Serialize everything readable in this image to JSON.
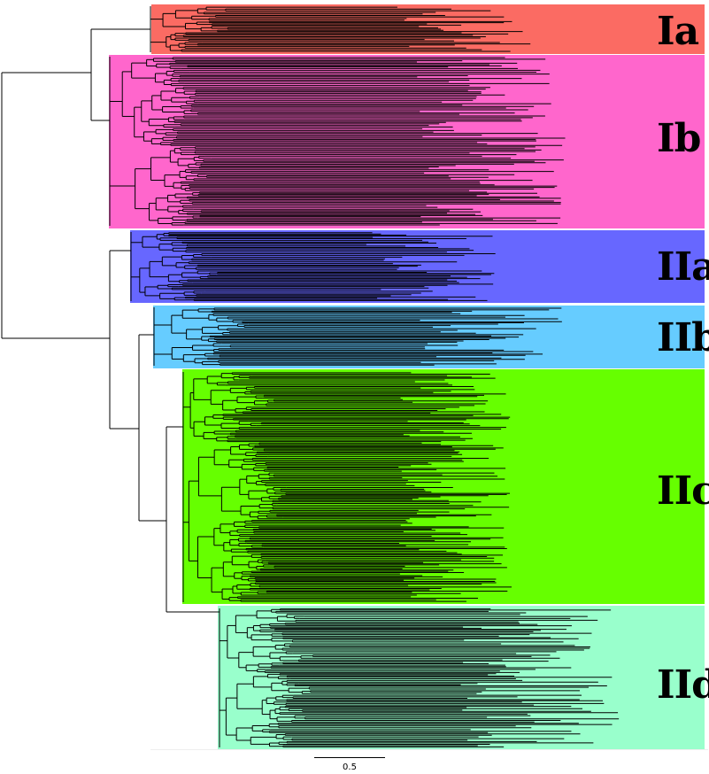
{
  "clades": [
    {
      "id": "Ia",
      "label": "Ia",
      "color": "#fb6b63"
    },
    {
      "id": "Ib",
      "label": "Ib",
      "color": "#ff66cc"
    },
    {
      "id": "IIa",
      "label": "IIa",
      "color": "#6767ff"
    },
    {
      "id": "IIb",
      "label": "IIb",
      "color": "#66ccff"
    },
    {
      "id": "IIc",
      "label": "IIc",
      "color": "#66ff00"
    },
    {
      "id": "IId",
      "label": "IId",
      "color": "#99ffcc"
    }
  ],
  "scale_bar": {
    "label": "0.5",
    "value": 0.5
  },
  "branch_color": "#000000"
}
